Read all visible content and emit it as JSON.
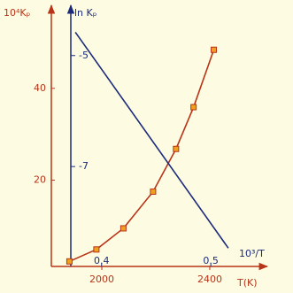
{
  "chart_data": {
    "type": "line",
    "ylabel": "10⁴Kₚ",
    "y2label": "ln Kₚ",
    "xlabel": "T(K)",
    "x2label": "10³/T",
    "xlim": [
      1813,
      2574
    ],
    "xticks": [
      2000,
      2400
    ],
    "x2lim": [
      0.354,
      0.542
    ],
    "x2ticks": [
      0.4,
      0.5
    ],
    "ylim": [
      1.2,
      55
    ],
    "yticks": [
      20,
      40
    ],
    "y2lim": [
      -8.8,
      -4.35
    ],
    "y2ticks": [
      -5,
      -7
    ],
    "series": [
      {
        "color": "#b83418",
        "marker_color": "#f0a020",
        "x": [
          1880,
          1980,
          2080,
          2190,
          2275,
          2340,
          2415
        ],
        "values": [
          2.3,
          4.9,
          9.5,
          17.5,
          26.8,
          35.9,
          48.4
        ]
      },
      {
        "color": "#1c2a7c",
        "axis": "y2",
        "x": [
          0.376,
          0.516
        ],
        "values": [
          -4.58,
          -8.47
        ]
      }
    ]
  }
}
